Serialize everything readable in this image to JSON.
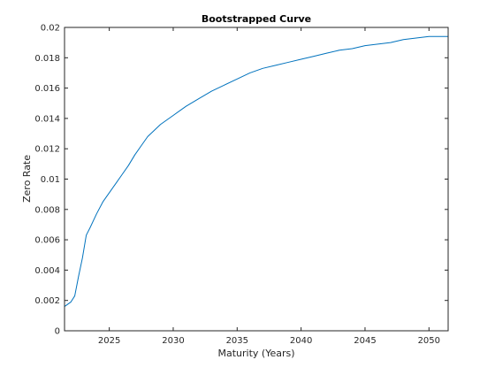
{
  "chart_data": {
    "type": "line",
    "title": "Bootstrapped Curve",
    "xlabel": "Maturity (Years)",
    "ylabel": "Zero Rate",
    "xlim": [
      2021.5,
      2051.5
    ],
    "ylim": [
      0,
      0.02
    ],
    "xticks": [
      2025,
      2030,
      2035,
      2040,
      2045,
      2050
    ],
    "yticks": [
      0,
      0.002,
      0.004,
      0.006,
      0.008,
      0.01,
      0.012,
      0.014,
      0.016,
      0.018,
      0.02
    ],
    "grid": false,
    "legend": false,
    "series": [
      {
        "color": "#0072bd",
        "x": [
          2021.5,
          2022.0,
          2022.3,
          2022.6,
          2022.9,
          2023.2,
          2023.5,
          2024.0,
          2024.5,
          2025.0,
          2025.5,
          2026.0,
          2026.5,
          2027.0,
          2027.5,
          2028.0,
          2028.5,
          2029.0,
          2029.5,
          2030.0,
          2031.0,
          2032.0,
          2033.0,
          2034.0,
          2035.0,
          2036.0,
          2037.0,
          2038.0,
          2039.0,
          2040.0,
          2041.0,
          2042.0,
          2043.0,
          2044.0,
          2045.0,
          2046.0,
          2047.0,
          2048.0,
          2049.0,
          2050.0,
          2051.0,
          2051.5
        ],
        "y": [
          0.0016,
          0.0019,
          0.0023,
          0.0036,
          0.0048,
          0.0063,
          0.0068,
          0.0077,
          0.0085,
          0.0091,
          0.0097,
          0.0103,
          0.0109,
          0.0116,
          0.0122,
          0.0128,
          0.0132,
          0.0136,
          0.0139,
          0.0142,
          0.0148,
          0.0153,
          0.0158,
          0.0162,
          0.0166,
          0.017,
          0.0173,
          0.0175,
          0.0177,
          0.0179,
          0.0181,
          0.0183,
          0.0185,
          0.0186,
          0.0188,
          0.0189,
          0.019,
          0.0192,
          0.0193,
          0.0194,
          0.0194,
          0.0194
        ]
      }
    ]
  }
}
